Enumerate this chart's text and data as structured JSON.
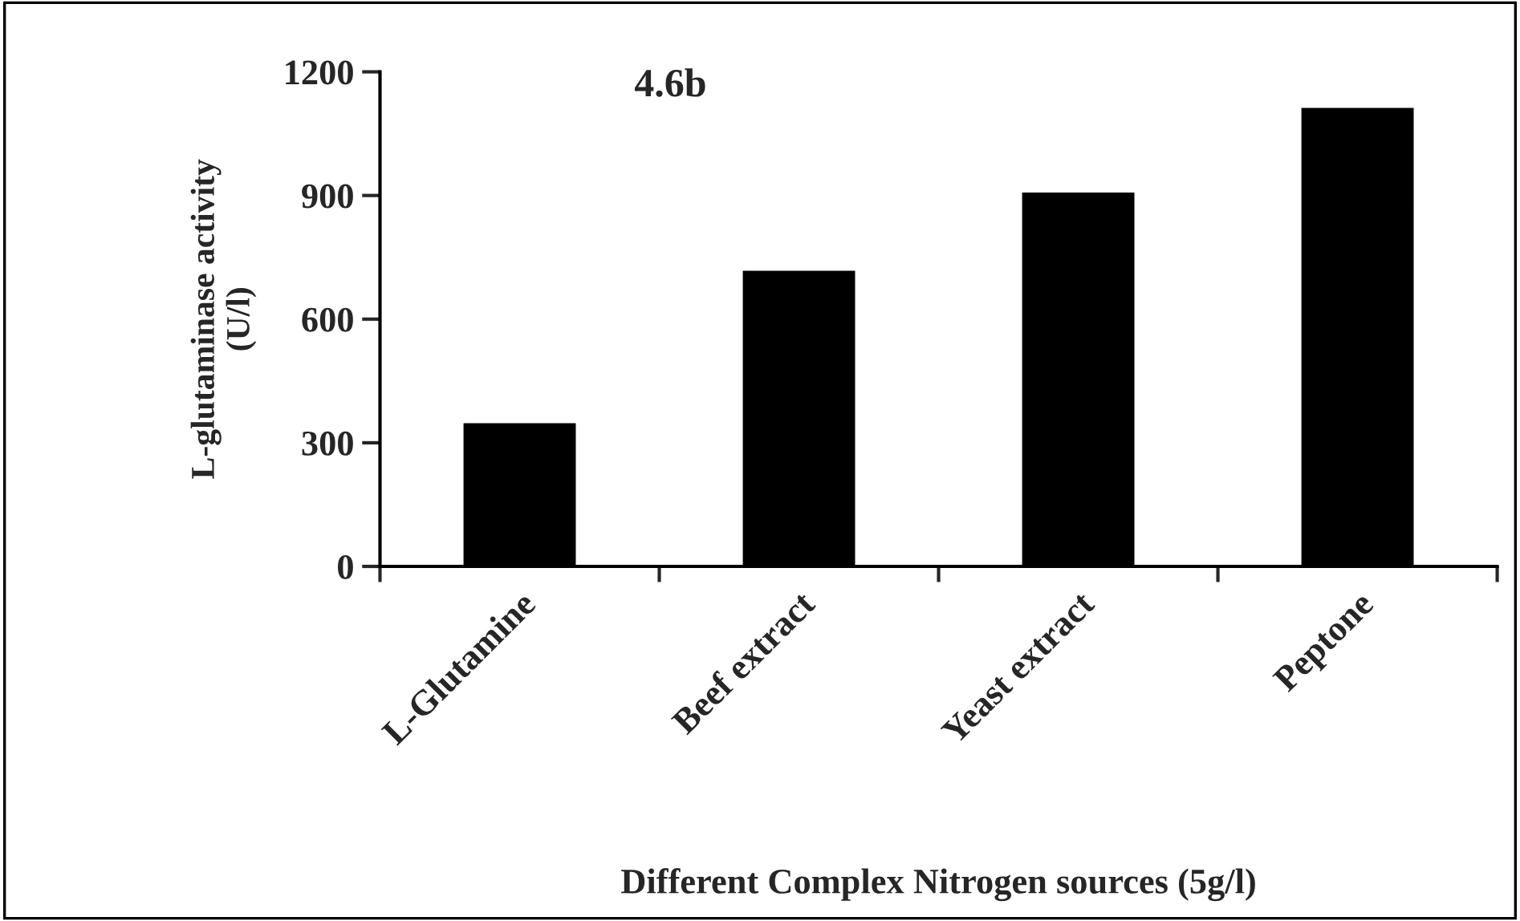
{
  "chart_data": {
    "type": "bar",
    "categories": [
      "L-Glutamine",
      "Beef extract",
      "Yeast extract",
      "Peptone"
    ],
    "values": [
      350,
      720,
      910,
      1115
    ],
    "color": "#000000",
    "xlabel": "Different Complex Nitrogen sources (5g/l)",
    "ylabel": "L-glutaminase activity\n(U/l)",
    "annotations": [
      "4.6b"
    ],
    "ylim": [
      0,
      1200
    ],
    "yticks": [
      0,
      300,
      600,
      900,
      1200
    ],
    "grid": false
  }
}
